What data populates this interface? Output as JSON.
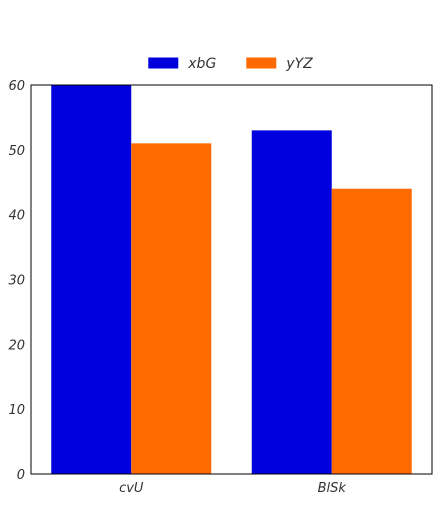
{
  "chart_data": {
    "type": "bar",
    "title": "",
    "xlabel": "",
    "ylabel": "",
    "categories": [
      "cvU",
      "BlSk"
    ],
    "series": [
      {
        "name": "xbG",
        "values": [
          60,
          53
        ],
        "color": "#0000dd"
      },
      {
        "name": "yYZ",
        "values": [
          51,
          44
        ],
        "color": "#ff6a00"
      }
    ],
    "ylim": [
      0,
      60
    ],
    "yticks": [
      0,
      10,
      20,
      30,
      40,
      50,
      60
    ],
    "grid": false,
    "legend_position": "top-center"
  }
}
